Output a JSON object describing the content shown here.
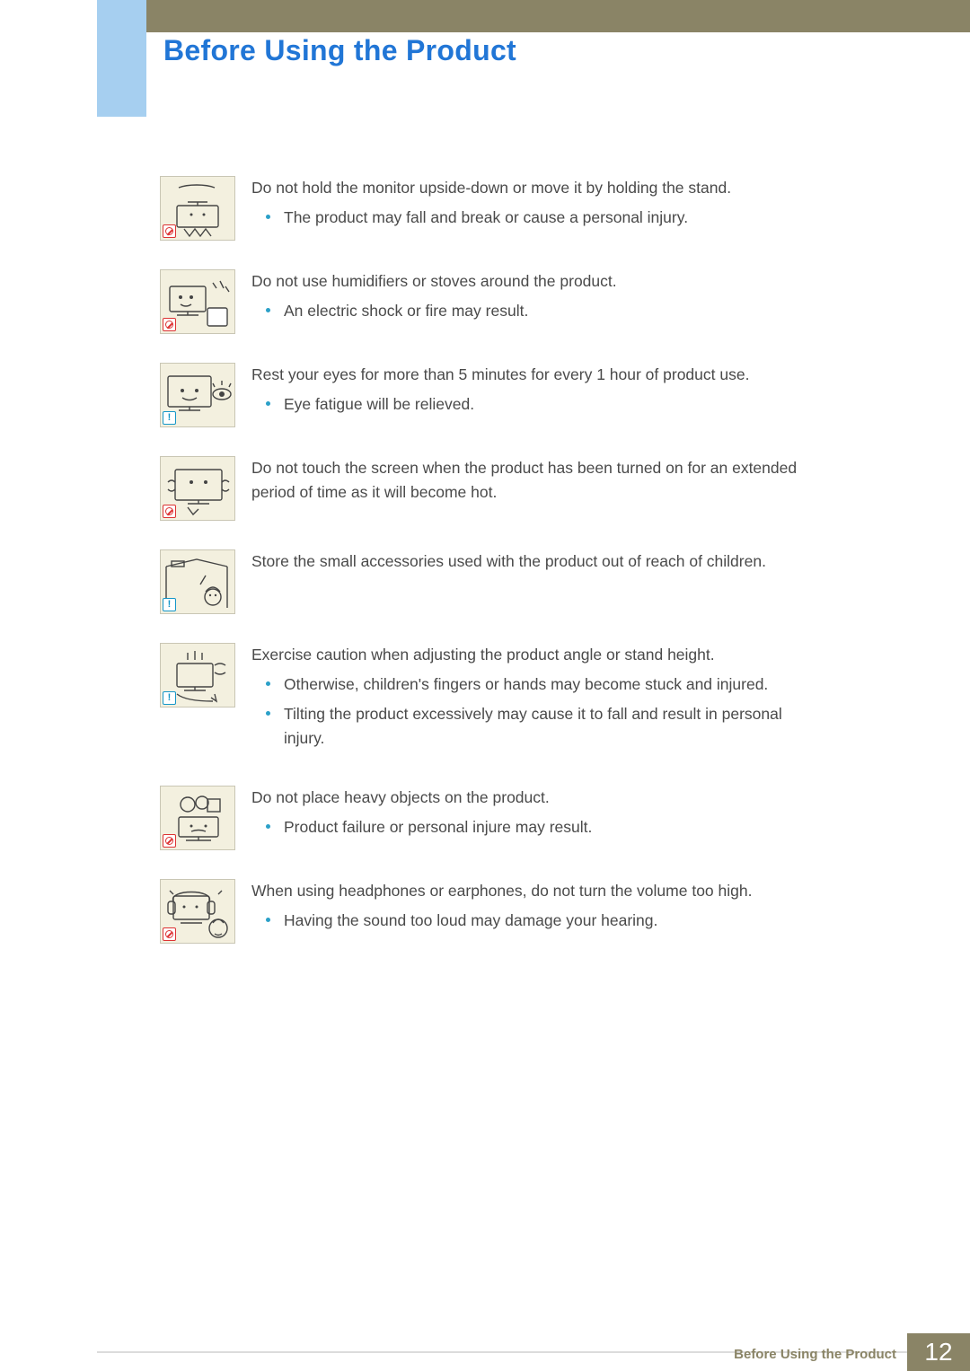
{
  "colors": {
    "title": "#2176d6",
    "header_bar": "#8a8466",
    "blue_tab": "#a6cff0",
    "body_text": "#4a4a4a",
    "bullet": "#2ba0c8",
    "thumb_bg": "#f3f0df",
    "thumb_border": "#c9c6b4",
    "prohibit": "#d33333",
    "info": "#1496c8",
    "footer_line": "#dcdcdc"
  },
  "page_title": "Before Using the Product",
  "footer": {
    "label": "Before Using the Product",
    "page_number": "12"
  },
  "entries": [
    {
      "badge": "prohibit",
      "icon": "monitor-upside-down",
      "main": "Do not hold the monitor upside-down or move it by holding the stand.",
      "bullets": [
        "The product may fall and break or cause a personal injury."
      ]
    },
    {
      "badge": "prohibit",
      "icon": "humidifier",
      "main": "Do not use humidifiers or stoves around the product.",
      "bullets": [
        "An electric shock or fire may result."
      ]
    },
    {
      "badge": "info",
      "icon": "eye-rest",
      "main": "Rest your eyes for more than 5 minutes for every 1 hour of product use.",
      "bullets": [
        "Eye fatigue will be relieved."
      ]
    },
    {
      "badge": "prohibit",
      "icon": "hot-screen",
      "main": "Do not touch the screen when the product has been turned on for an extended period of time as it will become hot.",
      "bullets": []
    },
    {
      "badge": "info",
      "icon": "child-accessories",
      "main": "Store the small accessories used with the product out of reach of children.",
      "bullets": []
    },
    {
      "badge": "info",
      "icon": "adjust-angle",
      "main": "Exercise caution when adjusting the product angle or stand height.",
      "bullets": [
        "Otherwise, children's fingers or hands may become stuck and injured.",
        "Tilting the product excessively may cause it to fall and result in personal injury."
      ]
    },
    {
      "badge": "prohibit",
      "icon": "heavy-objects",
      "main": "Do not place heavy objects on the product.",
      "bullets": [
        "Product failure or personal injure may result."
      ]
    },
    {
      "badge": "prohibit",
      "icon": "headphones-loud",
      "main": "When using headphones or earphones, do not turn the volume too high.",
      "bullets": [
        "Having the sound too loud may damage your hearing."
      ]
    }
  ]
}
